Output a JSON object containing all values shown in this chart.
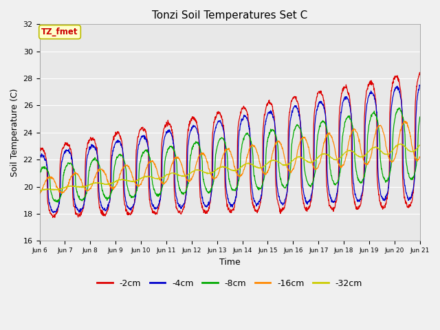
{
  "title": "Tonzi Soil Temperatures Set C",
  "xlabel": "Time",
  "ylabel": "Soil Temperature (C)",
  "ylim": [
    16,
    32
  ],
  "annotation_text": "TZ_fmet",
  "annotation_bg": "#ffffcc",
  "annotation_border": "#bbbb00",
  "annotation_color": "#cc0000",
  "fig_bg_color": "#f0f0f0",
  "plot_bg_color": "#e8e8e8",
  "series_colors": [
    "#dd0000",
    "#0000cc",
    "#00aa00",
    "#ff8800",
    "#cccc00"
  ],
  "series_labels": [
    "-2cm",
    "-4cm",
    "-8cm",
    "-16cm",
    "-32cm"
  ],
  "xtick_labels": [
    "Jun 6",
    "Jun 7",
    "Jun 8",
    "Jun 9",
    "Jun 10",
    "Jun 11",
    "Jun 12",
    "Jun 13",
    "Jun 14",
    "Jun 15",
    "Jun 16",
    "Jun 17",
    "Jun 18",
    "Jun 19",
    "Jun 20",
    "Jun 21"
  ],
  "ytick_values": [
    16,
    18,
    20,
    22,
    24,
    26,
    28,
    30,
    32
  ],
  "legend_ncol": 5
}
